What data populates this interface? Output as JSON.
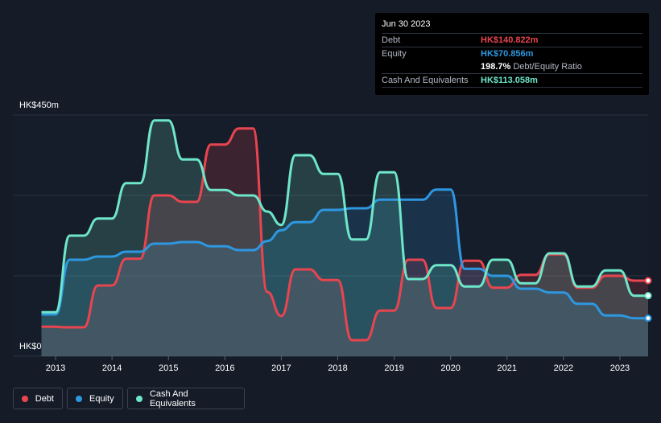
{
  "tooltip": {
    "date": "Jun 30 2023",
    "debt_label": "Debt",
    "debt_value": "HK$140.822m",
    "equity_label": "Equity",
    "equity_value": "HK$70.856m",
    "ratio_value": "198.7%",
    "ratio_label": "Debt/Equity Ratio",
    "cash_label": "Cash And Equivalents",
    "cash_value": "HK$113.058m"
  },
  "colors": {
    "debt": "#e8454f",
    "equity": "#2e97e0",
    "cash": "#6ee6c9",
    "background": "#151c28"
  },
  "legend": {
    "debt": "Debt",
    "equity": "Equity",
    "cash": "Cash And Equivalents"
  },
  "chart_data": {
    "type": "area",
    "title": "",
    "xlabel": "",
    "ylabel": "",
    "y_top_label": "HK$450m",
    "y_bottom_label": "HK$0",
    "ylim": [
      0,
      450
    ],
    "xlim": [
      2012.7,
      2023.5
    ],
    "x_ticks": [
      "2013",
      "2014",
      "2015",
      "2016",
      "2017",
      "2018",
      "2019",
      "2020",
      "2021",
      "2022",
      "2023"
    ],
    "grid": true,
    "legend_position": "bottom-left",
    "series": [
      {
        "name": "Debt",
        "points": [
          [
            2012.75,
            55
          ],
          [
            2013.0,
            55
          ],
          [
            2013.15,
            54
          ],
          [
            2013.5,
            54
          ],
          [
            2013.75,
            132
          ],
          [
            2014.0,
            132
          ],
          [
            2014.25,
            182
          ],
          [
            2014.5,
            182
          ],
          [
            2014.75,
            300
          ],
          [
            2015.0,
            300
          ],
          [
            2015.25,
            288
          ],
          [
            2015.5,
            288
          ],
          [
            2015.75,
            395
          ],
          [
            2016.0,
            395
          ],
          [
            2016.25,
            425
          ],
          [
            2016.5,
            425
          ],
          [
            2016.75,
            120
          ],
          [
            2017.0,
            75
          ],
          [
            2017.25,
            162
          ],
          [
            2017.5,
            162
          ],
          [
            2017.75,
            142
          ],
          [
            2018.0,
            142
          ],
          [
            2018.25,
            30
          ],
          [
            2018.5,
            30
          ],
          [
            2018.75,
            85
          ],
          [
            2019.0,
            85
          ],
          [
            2019.25,
            180
          ],
          [
            2019.5,
            180
          ],
          [
            2019.75,
            90
          ],
          [
            2020.0,
            90
          ],
          [
            2020.25,
            178
          ],
          [
            2020.5,
            178
          ],
          [
            2020.75,
            128
          ],
          [
            2021.0,
            128
          ],
          [
            2021.25,
            152
          ],
          [
            2021.5,
            152
          ],
          [
            2021.75,
            190
          ],
          [
            2022.0,
            190
          ],
          [
            2022.25,
            128
          ],
          [
            2022.5,
            128
          ],
          [
            2022.75,
            150
          ],
          [
            2023.0,
            150
          ],
          [
            2023.25,
            141
          ],
          [
            2023.5,
            141
          ]
        ]
      },
      {
        "name": "Equity",
        "points": [
          [
            2012.75,
            78
          ],
          [
            2013.0,
            78
          ],
          [
            2013.25,
            180
          ],
          [
            2013.5,
            180
          ],
          [
            2013.75,
            186
          ],
          [
            2014.0,
            186
          ],
          [
            2014.25,
            195
          ],
          [
            2014.5,
            195
          ],
          [
            2014.75,
            210
          ],
          [
            2015.0,
            210
          ],
          [
            2015.25,
            213
          ],
          [
            2015.5,
            213
          ],
          [
            2015.75,
            205
          ],
          [
            2016.0,
            205
          ],
          [
            2016.25,
            198
          ],
          [
            2016.5,
            198
          ],
          [
            2016.75,
            215
          ],
          [
            2017.0,
            235
          ],
          [
            2017.25,
            250
          ],
          [
            2017.5,
            250
          ],
          [
            2017.75,
            273
          ],
          [
            2018.0,
            273
          ],
          [
            2018.25,
            276
          ],
          [
            2018.5,
            276
          ],
          [
            2018.75,
            292
          ],
          [
            2019.0,
            292
          ],
          [
            2019.25,
            292
          ],
          [
            2019.5,
            292
          ],
          [
            2019.75,
            311
          ],
          [
            2020.0,
            311
          ],
          [
            2020.25,
            163
          ],
          [
            2020.5,
            163
          ],
          [
            2020.75,
            150
          ],
          [
            2021.0,
            150
          ],
          [
            2021.25,
            126
          ],
          [
            2021.5,
            126
          ],
          [
            2021.75,
            119
          ],
          [
            2022.0,
            119
          ],
          [
            2022.25,
            98
          ],
          [
            2022.5,
            98
          ],
          [
            2022.75,
            76
          ],
          [
            2023.0,
            76
          ],
          [
            2023.25,
            71
          ],
          [
            2023.5,
            71
          ]
        ]
      },
      {
        "name": "Cash And Equivalents",
        "points": [
          [
            2012.75,
            82
          ],
          [
            2013.0,
            82
          ],
          [
            2013.25,
            225
          ],
          [
            2013.5,
            225
          ],
          [
            2013.75,
            257
          ],
          [
            2014.0,
            257
          ],
          [
            2014.25,
            323
          ],
          [
            2014.5,
            323
          ],
          [
            2014.75,
            440
          ],
          [
            2015.0,
            440
          ],
          [
            2015.25,
            367
          ],
          [
            2015.5,
            367
          ],
          [
            2015.75,
            310
          ],
          [
            2016.0,
            310
          ],
          [
            2016.25,
            300
          ],
          [
            2016.5,
            300
          ],
          [
            2016.75,
            270
          ],
          [
            2017.0,
            245
          ],
          [
            2017.25,
            375
          ],
          [
            2017.5,
            375
          ],
          [
            2017.75,
            340
          ],
          [
            2018.0,
            340
          ],
          [
            2018.25,
            218
          ],
          [
            2018.5,
            218
          ],
          [
            2018.75,
            343
          ],
          [
            2019.0,
            343
          ],
          [
            2019.25,
            144
          ],
          [
            2019.5,
            144
          ],
          [
            2019.75,
            170
          ],
          [
            2020.0,
            170
          ],
          [
            2020.25,
            130
          ],
          [
            2020.5,
            130
          ],
          [
            2020.75,
            180
          ],
          [
            2021.0,
            180
          ],
          [
            2021.25,
            136
          ],
          [
            2021.5,
            136
          ],
          [
            2021.75,
            192
          ],
          [
            2022.0,
            192
          ],
          [
            2022.25,
            130
          ],
          [
            2022.5,
            130
          ],
          [
            2022.75,
            160
          ],
          [
            2023.0,
            160
          ],
          [
            2023.25,
            113
          ],
          [
            2023.5,
            113
          ]
        ]
      }
    ]
  }
}
